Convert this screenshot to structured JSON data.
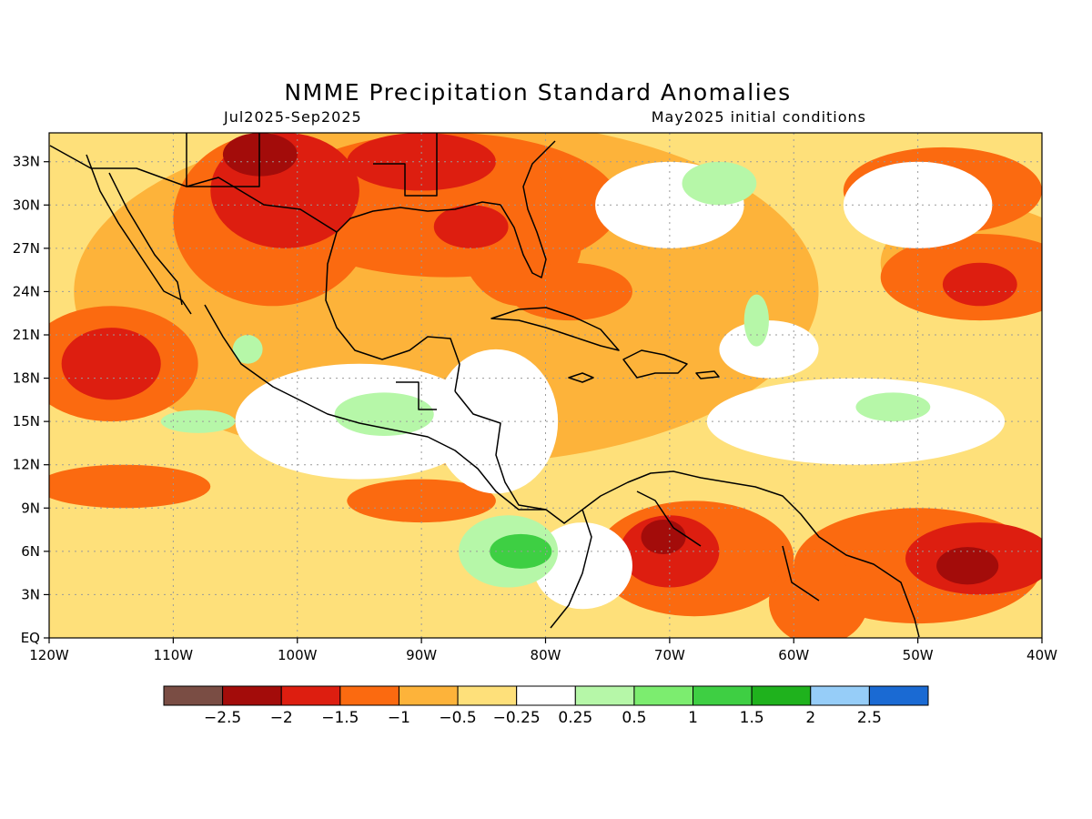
{
  "map": {
    "title": "NMME Precipitation Standard Anomalies",
    "period": "Jul2025-Sep2025",
    "init": "May2025 initial conditions",
    "lon_range": [
      -120,
      -40
    ],
    "lat_range": [
      0,
      35
    ],
    "lon_ticks": [
      {
        "value": -120,
        "label": "120W"
      },
      {
        "value": -110,
        "label": "110W"
      },
      {
        "value": -100,
        "label": "100W"
      },
      {
        "value": -90,
        "label": "90W"
      },
      {
        "value": -80,
        "label": "80W"
      },
      {
        "value": -70,
        "label": "70W"
      },
      {
        "value": -60,
        "label": "60W"
      },
      {
        "value": -50,
        "label": "50W"
      },
      {
        "value": -40,
        "label": "40W"
      }
    ],
    "lat_ticks": [
      {
        "value": 0,
        "label": "EQ"
      },
      {
        "value": 3,
        "label": "3N"
      },
      {
        "value": 6,
        "label": "6N"
      },
      {
        "value": 9,
        "label": "9N"
      },
      {
        "value": 12,
        "label": "12N"
      },
      {
        "value": 15,
        "label": "15N"
      },
      {
        "value": 18,
        "label": "18N"
      },
      {
        "value": 21,
        "label": "21N"
      },
      {
        "value": 24,
        "label": "24N"
      },
      {
        "value": 27,
        "label": "27N"
      },
      {
        "value": 30,
        "label": "30N"
      },
      {
        "value": 33,
        "label": "33N"
      }
    ],
    "colorbar": {
      "colors": [
        "#7a4d44",
        "#a30c0a",
        "#dd1e10",
        "#fb6a10",
        "#fdb33a",
        "#fee07a",
        "#ffffff",
        "#b6f7a8",
        "#7ced6f",
        "#3ecf43",
        "#1fb21d",
        "#96cdf8",
        "#1a6ad3"
      ],
      "labels": [
        "-2.5",
        "-2",
        "-1.5",
        "-1",
        "-0.5",
        "-0.25",
        "0.25",
        "0.5",
        "1",
        "1.5",
        "2",
        "2.5"
      ]
    },
    "anomaly_regions": [
      {
        "level": -0.5,
        "lon": -88,
        "lat": 24,
        "rx": 30,
        "ry": 12
      },
      {
        "level": -0.5,
        "lon": -45,
        "lat": 26,
        "rx": 8,
        "ry": 4
      },
      {
        "level": -1,
        "lon": -102,
        "lat": 29,
        "rx": 8,
        "ry": 6
      },
      {
        "level": -1,
        "lon": -88,
        "lat": 30,
        "rx": 14,
        "ry": 5
      },
      {
        "level": -1,
        "lon": -82,
        "lat": 28,
        "rx": 5,
        "ry": 5
      },
      {
        "level": -1,
        "lon": -45,
        "lat": 25,
        "rx": 8,
        "ry": 3
      },
      {
        "level": -1,
        "lon": -48,
        "lat": 31,
        "rx": 8,
        "ry": 3
      },
      {
        "level": -1,
        "lon": -115,
        "lat": 19,
        "rx": 7,
        "ry": 4
      },
      {
        "level": -1,
        "lon": -114,
        "lat": 10.5,
        "rx": 7,
        "ry": 1.5
      },
      {
        "level": -1,
        "lon": -90,
        "lat": 9.5,
        "rx": 6,
        "ry": 1.5
      },
      {
        "level": -1,
        "lon": -68,
        "lat": 5.5,
        "rx": 8,
        "ry": 4
      },
      {
        "level": -1,
        "lon": -50,
        "lat": 5,
        "rx": 10,
        "ry": 4
      },
      {
        "level": -1,
        "lon": -58,
        "lat": 2.5,
        "rx": 4,
        "ry": 3
      },
      {
        "level": -1,
        "lon": -78,
        "lat": 24,
        "rx": 5,
        "ry": 2
      },
      {
        "level": -1.5,
        "lon": -101,
        "lat": 31,
        "rx": 6,
        "ry": 4
      },
      {
        "level": -1.5,
        "lon": -90,
        "lat": 33,
        "rx": 6,
        "ry": 2
      },
      {
        "level": -1.5,
        "lon": -86,
        "lat": 28.5,
        "rx": 3,
        "ry": 1.5
      },
      {
        "level": -1.5,
        "lon": -115,
        "lat": 19,
        "rx": 4,
        "ry": 2.5
      },
      {
        "level": -1.5,
        "lon": -45,
        "lat": 5.5,
        "rx": 6,
        "ry": 2.5
      },
      {
        "level": -1.5,
        "lon": -70,
        "lat": 6,
        "rx": 4,
        "ry": 2.5
      },
      {
        "level": -1.5,
        "lon": -45,
        "lat": 24.5,
        "rx": 3,
        "ry": 1.5
      },
      {
        "level": -2,
        "lon": -70.5,
        "lat": 7,
        "rx": 1.8,
        "ry": 1.2
      },
      {
        "level": -2,
        "lon": -46,
        "lat": 5,
        "rx": 2.5,
        "ry": 1.3
      },
      {
        "level": -2,
        "lon": -103,
        "lat": 33.5,
        "rx": 3,
        "ry": 1.5
      },
      {
        "level": 0,
        "lon": -95,
        "lat": 15,
        "rx": 10,
        "ry": 4
      },
      {
        "level": 0,
        "lon": -84,
        "lat": 15,
        "rx": 5,
        "ry": 5
      },
      {
        "level": 0,
        "lon": -77,
        "lat": 5,
        "rx": 4,
        "ry": 3
      },
      {
        "level": 0,
        "lon": -55,
        "lat": 15,
        "rx": 12,
        "ry": 3
      },
      {
        "level": 0,
        "lon": -70,
        "lat": 30,
        "rx": 6,
        "ry": 3
      },
      {
        "level": 0,
        "lon": -50,
        "lat": 30,
        "rx": 6,
        "ry": 3
      },
      {
        "level": 0,
        "lon": -62,
        "lat": 20,
        "rx": 4,
        "ry": 2
      },
      {
        "level": 0.5,
        "lon": -83,
        "lat": 6,
        "rx": 4,
        "ry": 2.5
      },
      {
        "level": 0.5,
        "lon": -93,
        "lat": 15.5,
        "rx": 4,
        "ry": 1.5
      },
      {
        "level": 0.5,
        "lon": -108,
        "lat": 15,
        "rx": 3,
        "ry": 0.8
      },
      {
        "level": 0.5,
        "lon": -52,
        "lat": 16,
        "rx": 3,
        "ry": 1
      },
      {
        "level": 0.5,
        "lon": -66,
        "lat": 31.5,
        "rx": 3,
        "ry": 1.5
      },
      {
        "level": 0.5,
        "lon": -63,
        "lat": 22,
        "rx": 1,
        "ry": 1.8
      },
      {
        "level": 0.5,
        "lon": -104,
        "lat": 20,
        "rx": 1.2,
        "ry": 1
      },
      {
        "level": 1.5,
        "lon": -82,
        "lat": 6,
        "rx": 2.5,
        "ry": 1.2
      }
    ],
    "coast_label": "Central America and Caribbean coastlines"
  }
}
